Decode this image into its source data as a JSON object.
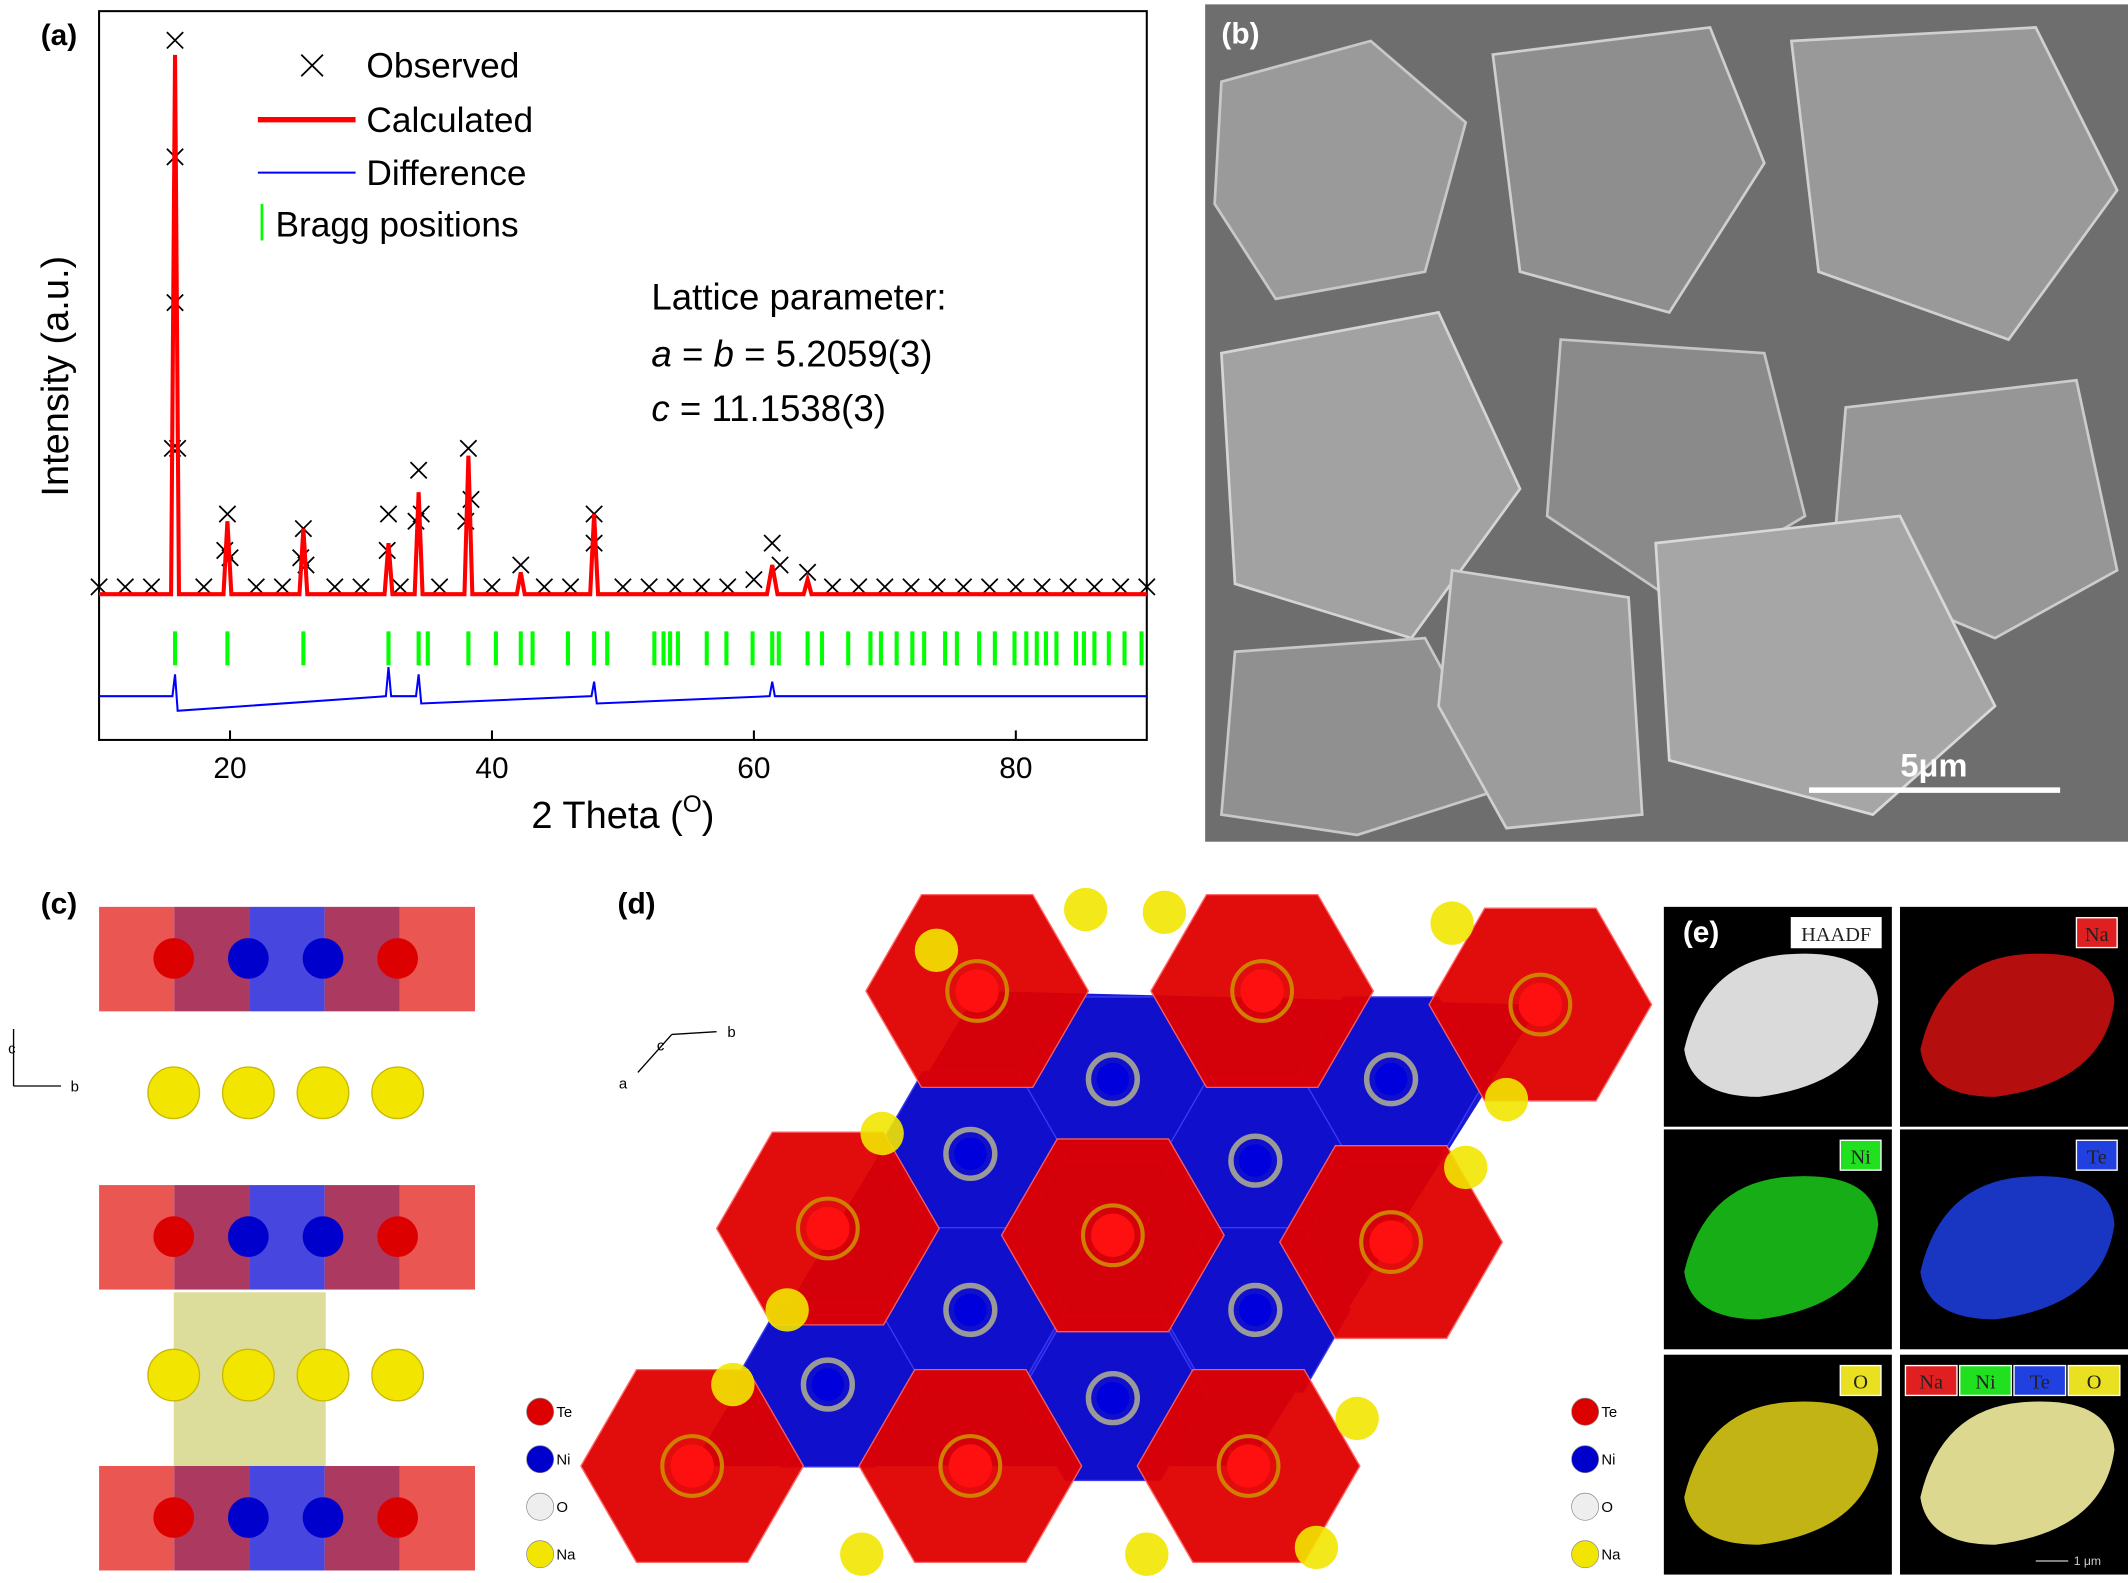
{
  "chart_data": {
    "type": "line",
    "panel_label": "(a)",
    "ylabel": "Intensity (a.u.)",
    "xlabel": "2 Theta (",
    "xlabel_sup": "O",
    "xlabel_end": ")",
    "xlim": [
      10,
      90
    ],
    "xticks": [
      20,
      40,
      60,
      80
    ],
    "ylim": [
      0,
      100
    ],
    "series": [
      {
        "name": "Observed",
        "color": "#000000",
        "style": "cross",
        "x": [
          10,
          12,
          14,
          15.6,
          15.8,
          15.8,
          15.8,
          16,
          18,
          19.6,
          19.8,
          20,
          22,
          24,
          25.4,
          25.6,
          25.8,
          28,
          30,
          32,
          32.1,
          33,
          34.2,
          34.4,
          34.6,
          36,
          38,
          38.2,
          38.4,
          40,
          42.2,
          44,
          46,
          47.8,
          47.8,
          50,
          52,
          54,
          56,
          58,
          60,
          61.4,
          62,
          64.1,
          66,
          68,
          70,
          72,
          74,
          76,
          78,
          80,
          82,
          84,
          86,
          88,
          90
        ],
        "values": [
          21,
          21,
          21,
          40,
          60,
          80,
          96,
          40,
          21,
          26,
          31,
          25,
          21,
          21,
          25,
          29,
          24,
          21,
          21,
          26,
          31,
          21,
          30,
          37,
          31,
          21,
          30,
          40,
          33,
          21,
          24,
          21,
          21,
          27,
          31,
          21,
          21,
          21,
          21,
          21,
          22,
          27,
          24,
          23,
          21,
          21,
          21,
          21,
          21,
          21,
          21,
          21,
          21,
          21,
          21,
          21,
          21
        ]
      },
      {
        "name": "Calculated",
        "color": "#ff0000",
        "style": "line",
        "x": [
          10,
          15.5,
          15.8,
          16.1,
          19.5,
          19.8,
          20.1,
          25.3,
          25.6,
          25.9,
          31.8,
          32.1,
          32.4,
          34.1,
          34.4,
          34.7,
          37.9,
          38.2,
          38.5,
          41.9,
          42.2,
          42.5,
          47.5,
          47.8,
          48.1,
          61.0,
          61.4,
          61.8,
          63.8,
          64.1,
          64.4,
          90
        ],
        "values": [
          20,
          20,
          94,
          20,
          20,
          30,
          20,
          20,
          29,
          20,
          20,
          27,
          20,
          20,
          34,
          20,
          20,
          39,
          20,
          20,
          23,
          20,
          20,
          31,
          20,
          20,
          24,
          20,
          20,
          22,
          20,
          20
        ]
      },
      {
        "name": "Difference",
        "color": "#0000ff",
        "style": "line",
        "x": [
          10,
          15.6,
          15.8,
          16,
          31.9,
          32.1,
          32.3,
          34.2,
          34.4,
          34.6,
          47.6,
          47.8,
          48,
          61.2,
          61.4,
          61.6,
          90
        ],
        "values": [
          6,
          6,
          9,
          4,
          6,
          10,
          6,
          6,
          9,
          5,
          6,
          8,
          5,
          6,
          8,
          6,
          6
        ]
      },
      {
        "name": "Bragg positions",
        "color": "#00ff00",
        "style": "tick",
        "x": [
          15.8,
          19.8,
          25.6,
          32.1,
          34.4,
          35.1,
          38.2,
          40.3,
          42.2,
          43.1,
          45.8,
          47.8,
          48.8,
          52.4,
          53.1,
          53.6,
          54.2,
          56.4,
          57.9,
          59.9,
          61.4,
          61.9,
          64.1,
          65.2,
          67.2,
          68.9,
          69.7,
          70.9,
          72.1,
          73.0,
          74.6,
          75.5,
          77.2,
          78.4,
          79.9,
          80.8,
          81.6,
          82.3,
          83.1,
          84.6,
          85.2,
          86.0,
          87.1,
          88.3,
          89.6
        ]
      }
    ],
    "annotation": {
      "title": "Lattice parameter:",
      "a": "a",
      "eq": " = ",
      "b": "b",
      "ab_value": " = 5.2059(3)",
      "c": "c",
      "c_value": " = 11.1538(3)"
    }
  },
  "panels": {
    "b": {
      "label": "(b)",
      "scale_bar": "5μm"
    },
    "c": {
      "label": "(c)",
      "axes": [
        "c",
        "b"
      ],
      "legend": [
        "Te",
        "Ni",
        "O",
        "Na"
      ]
    },
    "d": {
      "label": "(d)",
      "axes": [
        "b",
        "c",
        "a"
      ],
      "legend": [
        "Te",
        "Ni",
        "O",
        "Na"
      ]
    },
    "e": {
      "label": "(e)",
      "maps": [
        "HAADF",
        "Na",
        "Ni",
        "Te",
        "O"
      ],
      "overlay": [
        "Na",
        "Ni",
        "Te",
        "O"
      ],
      "scale_bar": "1 μm"
    }
  }
}
